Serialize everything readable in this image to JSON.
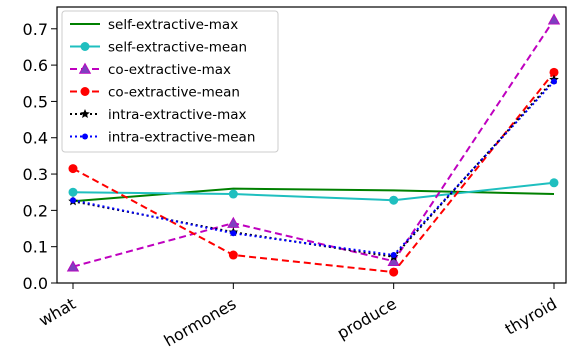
{
  "chart_data": {
    "type": "line",
    "title": "",
    "xlabel": "",
    "ylabel": "",
    "categories": [
      "what",
      "hormones",
      "produce",
      "thyroid"
    ],
    "ylim": [
      0,
      0.76
    ],
    "yticks": [
      "0.0",
      "0.1",
      "0.2",
      "0.3",
      "0.4",
      "0.5",
      "0.6",
      "0.7"
    ],
    "grid": false,
    "legend_position": "top-left",
    "series": [
      {
        "name": "self-extractive-max",
        "values": [
          0.225,
          0.26,
          0.255,
          0.245
        ],
        "color": "#008000",
        "dash": "solid",
        "marker": "none"
      },
      {
        "name": "self-extractive-mean",
        "values": [
          0.25,
          0.245,
          0.228,
          0.276
        ],
        "color": "#1fbfbf",
        "dash": "solid",
        "marker": "circle"
      },
      {
        "name": "co-extractive-max",
        "values": [
          0.045,
          0.165,
          0.06,
          0.725
        ],
        "color": "#bf00bf",
        "dash": "dashed",
        "marker": "triangle"
      },
      {
        "name": "co-extractive-mean",
        "values": [
          0.315,
          0.077,
          0.03,
          0.58
        ],
        "color": "#ff0000",
        "dash": "dashed",
        "marker": "circle"
      },
      {
        "name": "intra-extractive-max",
        "values": [
          0.225,
          0.14,
          0.072,
          0.56
        ],
        "color": "#000000",
        "dash": "dotted",
        "marker": "star"
      },
      {
        "name": "intra-extractive-mean",
        "values": [
          0.228,
          0.137,
          0.077,
          0.555
        ],
        "color": "#0000ff",
        "dash": "dotted",
        "marker": "dot"
      }
    ]
  }
}
